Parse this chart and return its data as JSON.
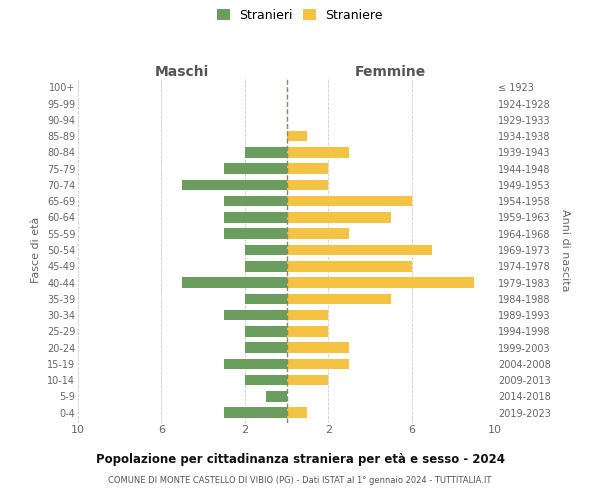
{
  "age_groups": [
    "0-4",
    "5-9",
    "10-14",
    "15-19",
    "20-24",
    "25-29",
    "30-34",
    "35-39",
    "40-44",
    "45-49",
    "50-54",
    "55-59",
    "60-64",
    "65-69",
    "70-74",
    "75-79",
    "80-84",
    "85-89",
    "90-94",
    "95-99",
    "100+"
  ],
  "birth_years": [
    "2019-2023",
    "2014-2018",
    "2009-2013",
    "2004-2008",
    "1999-2003",
    "1994-1998",
    "1989-1993",
    "1984-1988",
    "1979-1983",
    "1974-1978",
    "1969-1973",
    "1964-1968",
    "1959-1963",
    "1954-1958",
    "1949-1953",
    "1944-1948",
    "1939-1943",
    "1934-1938",
    "1929-1933",
    "1924-1928",
    "≤ 1923"
  ],
  "maschi": [
    3,
    1,
    2,
    3,
    2,
    2,
    3,
    2,
    5,
    2,
    2,
    3,
    3,
    3,
    5,
    3,
    2,
    0,
    0,
    0,
    0
  ],
  "femmine": [
    1,
    0,
    2,
    3,
    3,
    2,
    2,
    5,
    9,
    6,
    7,
    3,
    5,
    6,
    2,
    2,
    3,
    1,
    0,
    0,
    0
  ],
  "maschi_color": "#6b9e5e",
  "femmine_color": "#f5c343",
  "background_color": "#ffffff",
  "grid_color": "#cccccc",
  "title": "Popolazione per cittadinanza straniera per età e sesso - 2024",
  "subtitle": "COMUNE DI MONTE CASTELLO DI VIBIO (PG) - Dati ISTAT al 1° gennaio 2024 - TUTTITALIA.IT",
  "xlabel_left": "Maschi",
  "xlabel_right": "Femmine",
  "ylabel_left": "Fasce di età",
  "ylabel_right": "Anni di nascita",
  "legend_stranieri": "Stranieri",
  "legend_straniere": "Straniere",
  "xlim": 10
}
